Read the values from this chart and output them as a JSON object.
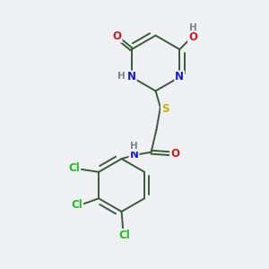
{
  "bg_color": "#eef0f4",
  "bond_color": "#3a5a3a",
  "bond_width": 1.4,
  "atom_colors": {
    "C": "#3a5a3a",
    "N": "#1a1acc",
    "O": "#cc1a1a",
    "S": "#ccaa00",
    "Cl": "#22bb22",
    "H": "#778888"
  },
  "fs": 8.5
}
